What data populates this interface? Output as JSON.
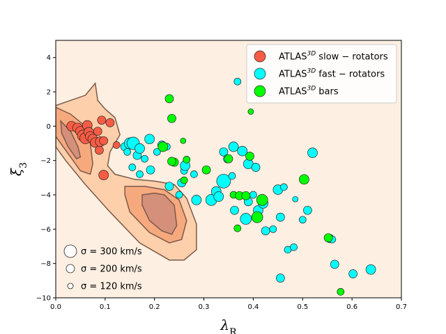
{
  "chart_data": {
    "type": "scatter",
    "xlabel": "λ_R",
    "ylabel": "ξ_3",
    "xlim": [
      0.0,
      0.7
    ],
    "ylim": [
      -10,
      5
    ],
    "xticks": [
      "0.0",
      "0.1",
      "0.2",
      "0.3",
      "0.4",
      "0.5",
      "0.6",
      "0.7"
    ],
    "yticks": [
      "−10",
      "−8",
      "−6",
      "−4",
      "−2",
      "0",
      "2",
      "4"
    ],
    "xtick_values": [
      0.0,
      0.1,
      0.2,
      0.3,
      0.4,
      0.5,
      0.6,
      0.7
    ],
    "ytick_values": [
      -10,
      -8,
      -6,
      -4,
      -2,
      0,
      2,
      4
    ],
    "background_color": "#fdefe2",
    "legend_position": "upper right",
    "legend": [
      {
        "atlas": "ATLAS",
        "sup": "3D",
        "rest": " slow − rotators",
        "color": "#f95c45"
      },
      {
        "atlas": "ATLAS",
        "sup": "3D",
        "rest": " fast − rotators",
        "color": "#00ffff"
      },
      {
        "atlas": "ATLAS",
        "sup": "3D",
        "rest": " bars",
        "color": "#00ff00"
      }
    ],
    "size_legend": [
      {
        "sigma_kms": 300,
        "label": "σ = 300 km/s"
      },
      {
        "sigma_kms": 200,
        "label": "σ = 200 km/s"
      },
      {
        "sigma_kms": 120,
        "label": "σ = 120 km/s"
      }
    ],
    "density_contours": [
      {
        "level": "outer",
        "color": "#fdcfab",
        "polygon": [
          [
            0.0,
            1.2
          ],
          [
            0.06,
            1.8
          ],
          [
            0.08,
            2.5
          ],
          [
            0.085,
            1.5
          ],
          [
            0.1,
            1.0
          ],
          [
            0.12,
            0.5
          ],
          [
            0.13,
            -0.5
          ],
          [
            0.11,
            -1.5
          ],
          [
            0.105,
            -2.3
          ],
          [
            0.12,
            -2.8
          ],
          [
            0.16,
            -3.1
          ],
          [
            0.2,
            -3.2
          ],
          [
            0.24,
            -3.4
          ],
          [
            0.265,
            -4.2
          ],
          [
            0.285,
            -5.7
          ],
          [
            0.285,
            -7.2
          ],
          [
            0.26,
            -7.8
          ],
          [
            0.23,
            -7.8
          ],
          [
            0.17,
            -6.8
          ],
          [
            0.11,
            -5.0
          ],
          [
            0.06,
            -3.4
          ],
          [
            0.02,
            -2.0
          ],
          [
            0.0,
            -1.2
          ]
        ]
      },
      {
        "level": "middle-left",
        "color": "#f7a97e",
        "polygon": [
          [
            0.0,
            1.1
          ],
          [
            0.03,
            0.7
          ],
          [
            0.06,
            0.0
          ],
          [
            0.07,
            -1.0
          ],
          [
            0.075,
            -2.2
          ],
          [
            0.07,
            -2.8
          ],
          [
            0.05,
            -2.6
          ],
          [
            0.03,
            -1.8
          ],
          [
            0.01,
            -1.0
          ],
          [
            0.0,
            -0.6
          ]
        ]
      },
      {
        "level": "middle-right",
        "color": "#f7a97e",
        "polygon": [
          [
            0.14,
            -3.5
          ],
          [
            0.18,
            -3.5
          ],
          [
            0.22,
            -3.7
          ],
          [
            0.25,
            -4.3
          ],
          [
            0.265,
            -5.5
          ],
          [
            0.255,
            -6.6
          ],
          [
            0.23,
            -6.8
          ],
          [
            0.19,
            -6.2
          ],
          [
            0.15,
            -5.0
          ],
          [
            0.14,
            -4.0
          ]
        ]
      },
      {
        "level": "inner-left",
        "color": "#d4907b",
        "polygon": [
          [
            0.01,
            0.3
          ],
          [
            0.03,
            -0.3
          ],
          [
            0.045,
            -1.2
          ],
          [
            0.05,
            -1.8
          ],
          [
            0.042,
            -1.9
          ],
          [
            0.025,
            -1.2
          ],
          [
            0.012,
            -0.4
          ]
        ]
      },
      {
        "level": "inner-right",
        "color": "#d4907b",
        "polygon": [
          [
            0.175,
            -4.0
          ],
          [
            0.2,
            -3.9
          ],
          [
            0.22,
            -4.0
          ],
          [
            0.24,
            -4.6
          ],
          [
            0.245,
            -5.8
          ],
          [
            0.235,
            -6.3
          ],
          [
            0.215,
            -6.1
          ],
          [
            0.19,
            -5.5
          ],
          [
            0.175,
            -4.6
          ]
        ]
      }
    ],
    "series": [
      {
        "name": "slow-rotators",
        "color": "#f95c45",
        "points": [
          [
            0.032,
            0.0,
            7
          ],
          [
            0.044,
            -0.1,
            7
          ],
          [
            0.05,
            -0.3,
            7
          ],
          [
            0.055,
            -0.55,
            8
          ],
          [
            0.06,
            -0.7,
            8
          ],
          [
            0.064,
            0.05,
            7
          ],
          [
            0.067,
            -0.35,
            7
          ],
          [
            0.07,
            -0.6,
            7
          ],
          [
            0.075,
            -0.75,
            7
          ],
          [
            0.08,
            -0.95,
            7
          ],
          [
            0.085,
            -0.3,
            6
          ],
          [
            0.088,
            -1.4,
            6
          ],
          [
            0.09,
            -0.9,
            7
          ],
          [
            0.093,
            0.35,
            6
          ],
          [
            0.097,
            -0.85,
            6
          ],
          [
            0.11,
            0.2,
            6
          ],
          [
            0.123,
            -1.1,
            5
          ],
          [
            0.097,
            -2.85,
            7
          ]
        ]
      },
      {
        "name": "fast-rotators",
        "color": "#00ffff",
        "points": [
          [
            0.14,
            -1.2,
            6
          ],
          [
            0.145,
            -1.5,
            5
          ],
          [
            0.15,
            -1.0,
            8
          ],
          [
            0.155,
            -2.4,
            5
          ],
          [
            0.157,
            -1.0,
            9
          ],
          [
            0.165,
            -1.7,
            6
          ],
          [
            0.17,
            -1.3,
            7
          ],
          [
            0.17,
            -2.8,
            5
          ],
          [
            0.18,
            -1.9,
            5
          ],
          [
            0.19,
            -0.75,
            7
          ],
          [
            0.192,
            -2.55,
            6
          ],
          [
            0.205,
            -1.5,
            5
          ],
          [
            0.215,
            -1.1,
            6
          ],
          [
            0.225,
            -1.2,
            5
          ],
          [
            0.23,
            -3.5,
            6
          ],
          [
            0.25,
            -4.0,
            5
          ],
          [
            0.255,
            -3.3,
            6
          ],
          [
            0.26,
            -2.6,
            5
          ],
          [
            0.262,
            -2.3,
            7
          ],
          [
            0.28,
            -2.8,
            5
          ],
          [
            0.285,
            -4.3,
            7
          ],
          [
            0.315,
            -4.3,
            8
          ],
          [
            0.325,
            -3.8,
            7
          ],
          [
            0.33,
            -4.1,
            7
          ],
          [
            0.34,
            -3.2,
            10
          ],
          [
            0.34,
            -1.5,
            6
          ],
          [
            0.348,
            -1.9,
            6
          ],
          [
            0.357,
            -2.9,
            5
          ],
          [
            0.36,
            -1.2,
            7
          ],
          [
            0.362,
            -4.9,
            6
          ],
          [
            0.368,
            2.6,
            5
          ],
          [
            0.378,
            -1.45,
            7
          ],
          [
            0.385,
            -5.4,
            8
          ],
          [
            0.39,
            -4.4,
            6
          ],
          [
            0.39,
            -2.2,
            7
          ],
          [
            0.4,
            -4.0,
            5
          ],
          [
            0.405,
            -2.4,
            6
          ],
          [
            0.41,
            -4.9,
            7
          ],
          [
            0.42,
            -4.5,
            7
          ],
          [
            0.425,
            -6.1,
            6
          ],
          [
            0.44,
            -6.0,
            5
          ],
          [
            0.45,
            -3.7,
            7
          ],
          [
            0.455,
            -8.85,
            6
          ],
          [
            0.455,
            -5.3,
            6
          ],
          [
            0.462,
            -3.55,
            5
          ],
          [
            0.47,
            -7.2,
            5
          ],
          [
            0.482,
            -7.05,
            5
          ],
          [
            0.485,
            -4.25,
            4
          ],
          [
            0.5,
            -5.45,
            5
          ],
          [
            0.51,
            -4.9,
            6
          ],
          [
            0.52,
            -1.55,
            7
          ],
          [
            0.555,
            -6.55,
            6
          ],
          [
            0.56,
            -6.6,
            5
          ],
          [
            0.565,
            -8.05,
            6
          ],
          [
            0.602,
            -8.6,
            6
          ],
          [
            0.638,
            -8.35,
            7
          ]
        ]
      },
      {
        "name": "bars",
        "color": "#00ff00",
        "points": [
          [
            0.23,
            1.6,
            6
          ],
          [
            0.235,
            0.45,
            6
          ],
          [
            0.24,
            -2.1,
            6
          ],
          [
            0.235,
            -2.05,
            6
          ],
          [
            0.217,
            -1.2,
            7
          ],
          [
            0.258,
            -0.85,
            4
          ],
          [
            0.26,
            -3.15,
            5
          ],
          [
            0.265,
            -1.95,
            5
          ],
          [
            0.305,
            -2.55,
            6
          ],
          [
            0.35,
            -1.9,
            6
          ],
          [
            0.36,
            -4.0,
            5
          ],
          [
            0.368,
            -5.95,
            5
          ],
          [
            0.372,
            -4.05,
            6
          ],
          [
            0.385,
            -4.05,
            6
          ],
          [
            0.393,
            -1.75,
            6
          ],
          [
            0.395,
            0.85,
            4
          ],
          [
            0.408,
            -5.3,
            8
          ],
          [
            0.418,
            -4.3,
            8
          ],
          [
            0.503,
            -3.1,
            7
          ],
          [
            0.552,
            -6.5,
            6
          ],
          [
            0.577,
            -9.65,
            5
          ]
        ]
      }
    ]
  }
}
